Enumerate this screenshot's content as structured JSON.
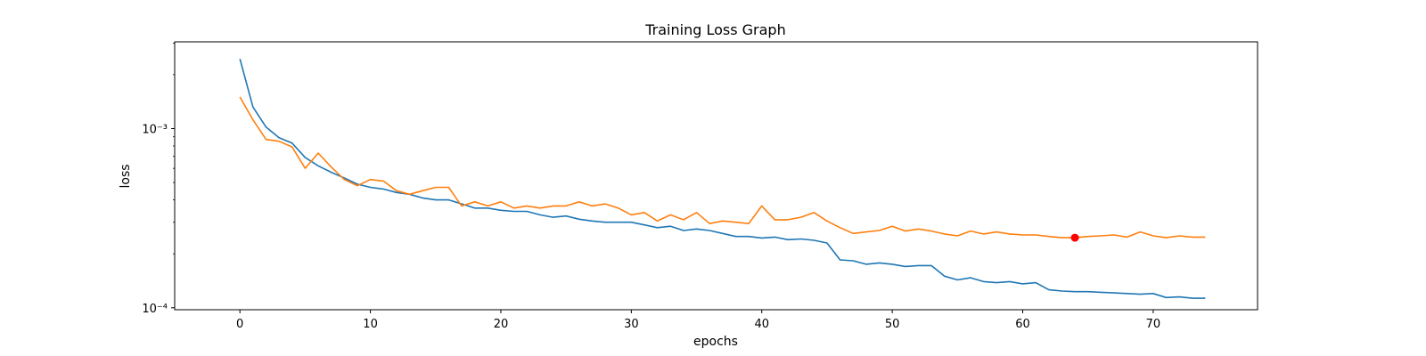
{
  "chart_data": {
    "type": "line",
    "title": "Training Loss Graph",
    "xlabel": "epochs",
    "ylabel": "loss",
    "yscale": "log",
    "xlim": [
      -5,
      78
    ],
    "ylim": [
      9.75e-05,
      0.00305
    ],
    "grid": false,
    "legend": "none",
    "x_ticks": [
      0,
      10,
      20,
      30,
      40,
      50,
      60,
      70
    ],
    "y_ticks": [
      {
        "value": 0.0001,
        "label": "10⁻⁴"
      },
      {
        "value": 0.001,
        "label": "10⁻³"
      }
    ],
    "x": [
      0,
      1,
      2,
      3,
      4,
      5,
      6,
      7,
      8,
      9,
      10,
      11,
      12,
      13,
      14,
      15,
      16,
      17,
      18,
      19,
      20,
      21,
      22,
      23,
      24,
      25,
      26,
      27,
      28,
      29,
      30,
      31,
      32,
      33,
      34,
      35,
      36,
      37,
      38,
      39,
      40,
      41,
      42,
      43,
      44,
      45,
      46,
      47,
      48,
      49,
      50,
      51,
      52,
      53,
      54,
      55,
      56,
      57,
      58,
      59,
      60,
      61,
      62,
      63,
      64,
      65,
      66,
      67,
      68,
      69,
      70,
      71,
      72,
      73,
      74
    ],
    "series": [
      {
        "color": "#1f77b4",
        "values": [
          0.00245,
          0.00132,
          0.00102,
          0.00089,
          0.00083,
          0.00069,
          0.00062,
          0.00057,
          0.00053,
          0.00049,
          0.00047,
          0.00046,
          0.00044,
          0.00043,
          0.00041,
          0.0004,
          0.0004,
          0.00038,
          0.00036,
          0.00036,
          0.00035,
          0.000345,
          0.000345,
          0.00033,
          0.00032,
          0.000325,
          0.000312,
          0.000305,
          0.0003,
          0.0003,
          0.0003,
          0.00029,
          0.00028,
          0.000285,
          0.00027,
          0.000275,
          0.00027,
          0.00026,
          0.00025,
          0.00025,
          0.000245,
          0.000248,
          0.00024,
          0.000242,
          0.000238,
          0.00023,
          0.000185,
          0.000183,
          0.000175,
          0.000178,
          0.000175,
          0.00017,
          0.000172,
          0.000172,
          0.00015,
          0.000143,
          0.000147,
          0.00014,
          0.000138,
          0.00014,
          0.000136,
          0.000138,
          0.000126,
          0.000124,
          0.000123,
          0.000123,
          0.000122,
          0.000121,
          0.00012,
          0.000119,
          0.00012,
          0.000114,
          0.000115,
          0.000113,
          0.000113
        ]
      },
      {
        "color": "#ff7f0e",
        "values": [
          0.0015,
          0.00112,
          0.00087,
          0.00085,
          0.00079,
          0.0006,
          0.00073,
          0.00061,
          0.00052,
          0.00048,
          0.00052,
          0.00051,
          0.00045,
          0.00043,
          0.00045,
          0.00047,
          0.00047,
          0.00037,
          0.00039,
          0.00037,
          0.00039,
          0.00036,
          0.00037,
          0.00036,
          0.00037,
          0.00037,
          0.00039,
          0.00037,
          0.00038,
          0.00036,
          0.00033,
          0.00034,
          0.000305,
          0.00033,
          0.00031,
          0.00034,
          0.000295,
          0.000305,
          0.0003,
          0.000295,
          0.00037,
          0.00031,
          0.00031,
          0.00032,
          0.00034,
          0.000305,
          0.00028,
          0.00026,
          0.000265,
          0.00027,
          0.000285,
          0.000268,
          0.000275,
          0.000268,
          0.000258,
          0.000252,
          0.000268,
          0.000258,
          0.000265,
          0.000258,
          0.000255,
          0.000255,
          0.00025,
          0.000246,
          0.000246,
          0.00025,
          0.000252,
          0.000255,
          0.000248,
          0.000265,
          0.000252,
          0.000246,
          0.000252,
          0.000248,
          0.000248
        ]
      }
    ],
    "markers": [
      {
        "x": 64,
        "y": 0.000246,
        "color": "#ff0000"
      }
    ]
  }
}
